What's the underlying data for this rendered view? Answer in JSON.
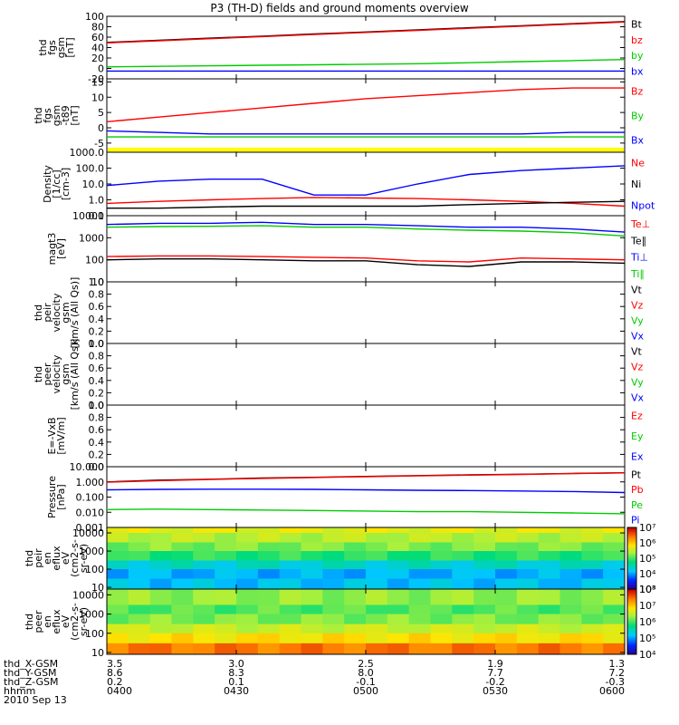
{
  "title": "P3 (TH-D) fields and ground moments overview",
  "chart_data": {
    "type": "line",
    "title": "P3 (TH-D) fields and ground moments overview",
    "x_ticks": [
      "0400",
      "0430",
      "0500",
      "0530",
      "0600"
    ],
    "panels": [
      {
        "ylabel": [
          "thd",
          "fgs",
          "gsm",
          "[nT]"
        ],
        "scale": "linear",
        "ylim": [
          -20,
          100
        ],
        "ticks": [
          "-20",
          "0",
          "20",
          "40",
          "60",
          "80",
          "100"
        ],
        "legend": [
          {
            "name": "Bt",
            "color": "#000000"
          },
          {
            "name": "bz",
            "color": "#ff0000"
          },
          {
            "name": "by",
            "color": "#00cc00"
          },
          {
            "name": "bx",
            "color": "#0000ff"
          }
        ],
        "series": [
          {
            "name": "Bt",
            "color": "#000000",
            "values": [
              50,
              54,
              58,
              62,
              66,
              70,
              74,
              78,
              82,
              86,
              90
            ]
          },
          {
            "name": "bz",
            "color": "#ff0000",
            "values": [
              49,
              53,
              57,
              61,
              65,
              69,
              73,
              77,
              81,
              85,
              89
            ]
          },
          {
            "name": "by",
            "color": "#00cc00",
            "values": [
              3,
              4,
              5,
              6,
              7,
              8,
              9,
              11,
              13,
              15,
              17
            ]
          },
          {
            "name": "bx",
            "color": "#0000ff",
            "values": [
              -5,
              -5,
              -5,
              -5,
              -5,
              -5,
              -5,
              -5,
              -5,
              -5,
              -5
            ]
          }
        ]
      },
      {
        "ylabel": [
          "thd",
          "fgs",
          "gsm",
          "-t89",
          "[nT]"
        ],
        "scale": "linear",
        "ylim": [
          -8,
          16
        ],
        "ticks": [
          "-5",
          "0",
          "5",
          "10",
          "15"
        ],
        "legend": [
          {
            "name": "Bz",
            "color": "#ff0000"
          },
          {
            "name": "By",
            "color": "#00cc00"
          },
          {
            "name": "Bx",
            "color": "#0000ff"
          }
        ],
        "series": [
          {
            "name": "Bz",
            "color": "#ff0000",
            "values": [
              2,
              3.5,
              5,
              6.5,
              8,
              9.5,
              10.5,
              11.5,
              12.5,
              13,
              13
            ]
          },
          {
            "name": "By",
            "color": "#00cc00",
            "values": [
              -3,
              -3,
              -3,
              -3,
              -3,
              -3,
              -3,
              -3,
              -3,
              -3,
              -3
            ]
          },
          {
            "name": "Bx",
            "color": "#0000ff",
            "values": [
              -1,
              -1.5,
              -2,
              -2,
              -2,
              -2,
              -2,
              -2,
              -2,
              -1.5,
              -1.5
            ]
          }
        ],
        "band": {
          "color": "#ffff00",
          "from": -7.8,
          "to": -6.5
        }
      },
      {
        "ylabel": [
          "Density",
          "[1/cc]",
          "[cm-3]"
        ],
        "scale": "log",
        "ylim": [
          0.1,
          1000
        ],
        "ticks": [
          "0.1",
          "1.0",
          "10.0",
          "100.0",
          "1000.0"
        ],
        "legend": [
          {
            "name": "Ne",
            "color": "#ff0000"
          },
          {
            "name": "Ni",
            "color": "#000000"
          },
          {
            "name": "Npot",
            "color": "#0000ff"
          }
        ],
        "series": [
          {
            "name": "Ne",
            "color": "#ff0000",
            "values": [
              0.6,
              0.8,
              1.0,
              1.2,
              1.4,
              1.3,
              1.2,
              1.0,
              0.8,
              0.6,
              0.4
            ]
          },
          {
            "name": "Ni",
            "color": "#000000",
            "values": [
              0.3,
              0.3,
              0.35,
              0.4,
              0.4,
              0.4,
              0.4,
              0.5,
              0.6,
              0.7,
              0.8
            ]
          },
          {
            "name": "Npot",
            "color": "#0000ff",
            "values": [
              8,
              15,
              20,
              20,
              2,
              2,
              10,
              40,
              70,
              100,
              140
            ]
          }
        ]
      },
      {
        "ylabel": [
          "magt3",
          "[eV]"
        ],
        "scale": "log",
        "ylim": [
          10,
          10000
        ],
        "ticks": [
          "10",
          "100",
          "1000",
          "10000"
        ],
        "legend": [
          {
            "name": "Te⊥",
            "color": "#ff0000"
          },
          {
            "name": "Te∥",
            "color": "#000000"
          },
          {
            "name": "Ti⊥",
            "color": "#0000ff"
          },
          {
            "name": "Ti∥",
            "color": "#00cc00"
          }
        ],
        "series": [
          {
            "name": "Te⊥",
            "color": "#ff0000",
            "values": [
              140,
              150,
              150,
              140,
              130,
              120,
              90,
              80,
              120,
              110,
              100
            ]
          },
          {
            "name": "Te∥",
            "color": "#000000",
            "values": [
              100,
              110,
              110,
              100,
              90,
              90,
              60,
              50,
              80,
              80,
              70
            ]
          },
          {
            "name": "Ti⊥",
            "color": "#0000ff",
            "values": [
              4000,
              4500,
              4500,
              5000,
              4000,
              4000,
              3500,
              3000,
              3000,
              2500,
              1800
            ]
          },
          {
            "name": "Ti∥",
            "color": "#00cc00",
            "values": [
              3000,
              3200,
              3300,
              3500,
              3000,
              3000,
              2500,
              2200,
              2000,
              1700,
              1200
            ]
          }
        ]
      },
      {
        "ylabel": [
          "thd",
          "peir",
          "velocity",
          "gsm",
          "[km/s (All Qs)]"
        ],
        "scale": "linear",
        "ylim": [
          0,
          1
        ],
        "ticks": [
          "0.0",
          "0.2",
          "0.4",
          "0.6",
          "0.8",
          "1.0"
        ],
        "legend": [
          {
            "name": "Vt",
            "color": "#000000"
          },
          {
            "name": "Vz",
            "color": "#ff0000"
          },
          {
            "name": "Vy",
            "color": "#00cc00"
          },
          {
            "name": "Vx",
            "color": "#0000ff"
          }
        ],
        "series": []
      },
      {
        "ylabel": [
          "thd",
          "peer",
          "velocity",
          "gsm",
          "[km/s (All Qs)]"
        ],
        "scale": "linear",
        "ylim": [
          0,
          1
        ],
        "ticks": [
          "0.0",
          "0.2",
          "0.4",
          "0.6",
          "0.8",
          "1.0"
        ],
        "legend": [
          {
            "name": "Vt",
            "color": "#000000"
          },
          {
            "name": "Vz",
            "color": "#ff0000"
          },
          {
            "name": "Vy",
            "color": "#00cc00"
          },
          {
            "name": "Vx",
            "color": "#0000ff"
          }
        ],
        "series": []
      },
      {
        "ylabel": [
          "E=-VxB",
          "[mV/m]"
        ],
        "scale": "linear",
        "ylim": [
          0,
          1
        ],
        "ticks": [
          "0.0",
          "0.2",
          "0.4",
          "0.6",
          "0.8",
          "1.0"
        ],
        "legend": [
          {
            "name": "Ez",
            "color": "#ff0000"
          },
          {
            "name": "Ey",
            "color": "#00cc00"
          },
          {
            "name": "Ex",
            "color": "#0000ff"
          }
        ],
        "series": []
      },
      {
        "ylabel": [
          "Pressure",
          "[nPa]"
        ],
        "scale": "log",
        "ylim": [
          0.001,
          10
        ],
        "ticks": [
          "0.001",
          "0.010",
          "0.100",
          "1.000",
          "10.000"
        ],
        "legend": [
          {
            "name": "Pt",
            "color": "#000000"
          },
          {
            "name": "Pb",
            "color": "#ff0000"
          },
          {
            "name": "Pe",
            "color": "#00cc00"
          },
          {
            "name": "Pi",
            "color": "#0000ff"
          }
        ],
        "series": [
          {
            "name": "Pt",
            "color": "#000000",
            "values": [
              1.0,
              1.3,
              1.5,
              1.8,
              2.0,
              2.3,
              2.6,
              2.9,
              3.2,
              3.6,
              4.0
            ]
          },
          {
            "name": "Pb",
            "color": "#ff0000",
            "values": [
              0.95,
              1.2,
              1.45,
              1.7,
              1.95,
              2.2,
              2.5,
              2.8,
              3.1,
              3.5,
              3.9
            ]
          },
          {
            "name": "Pe",
            "color": "#00cc00",
            "values": [
              0.015,
              0.016,
              0.015,
              0.014,
              0.013,
              0.012,
              0.011,
              0.011,
              0.01,
              0.009,
              0.008
            ]
          },
          {
            "name": "Pi",
            "color": "#0000ff",
            "values": [
              0.3,
              0.32,
              0.33,
              0.33,
              0.32,
              0.3,
              0.28,
              0.27,
              0.25,
              0.23,
              0.2
            ]
          }
        ]
      }
    ],
    "spectrograms": [
      {
        "ylabel": [
          "thd",
          "peir",
          "en",
          "eflux",
          "eV",
          "(cm2-s-",
          "sr-eV)"
        ],
        "scale": "log",
        "ylim": [
          8,
          20000
        ],
        "ticks": [
          "10",
          "100",
          "1000",
          "10000"
        ],
        "colorbar_labels": [
          "10³",
          "10⁴",
          "10⁵",
          "10⁶",
          "10⁷"
        ],
        "rows": [
          {
            "level": 0.68,
            "from": 10000,
            "to": 20000
          },
          {
            "level": 0.62,
            "from": 3000,
            "to": 10000
          },
          {
            "level": 0.56,
            "from": 1000,
            "to": 3000
          },
          {
            "level": 0.48,
            "from": 300,
            "to": 1000
          },
          {
            "level": 0.36,
            "from": 100,
            "to": 300
          },
          {
            "level": 0.28,
            "from": 30,
            "to": 100
          },
          {
            "level": 0.3,
            "from": 8,
            "to": 30
          }
        ]
      },
      {
        "ylabel": [
          "thd",
          "peer",
          "en",
          "eflux",
          "eV",
          "(cm2-s-",
          "sr-eV)"
        ],
        "scale": "log",
        "ylim": [
          8,
          20000
        ],
        "ticks": [
          "10",
          "100",
          "1000",
          "10000"
        ],
        "colorbar_labels": [
          "10⁴",
          "10⁵",
          "10⁶",
          "10⁷",
          "10⁸"
        ],
        "rows": [
          {
            "level": 0.58,
            "from": 3000,
            "to": 20000
          },
          {
            "level": 0.52,
            "from": 1000,
            "to": 3000
          },
          {
            "level": 0.56,
            "from": 300,
            "to": 1000
          },
          {
            "level": 0.64,
            "from": 100,
            "to": 300
          },
          {
            "level": 0.72,
            "from": 30,
            "to": 100
          },
          {
            "level": 0.86,
            "from": 8,
            "to": 30
          }
        ]
      }
    ],
    "footer": {
      "rows": [
        {
          "label": "thd_X-GSM",
          "values": [
            "3.5",
            "3.0",
            "2.5",
            "1.9",
            "1.3"
          ]
        },
        {
          "label": "thd_Y-GSM",
          "values": [
            "8.6",
            "8.3",
            "8.0",
            "7.7",
            "7.2"
          ]
        },
        {
          "label": "thd_Z-GSM",
          "values": [
            "0.2",
            "0.1",
            "-0.1",
            "-0.2",
            "-0.3"
          ]
        },
        {
          "label": "hhmm",
          "values": [
            "0400",
            "0430",
            "0500",
            "0530",
            "0600"
          ]
        }
      ],
      "date": "2010 Sep 13"
    }
  }
}
